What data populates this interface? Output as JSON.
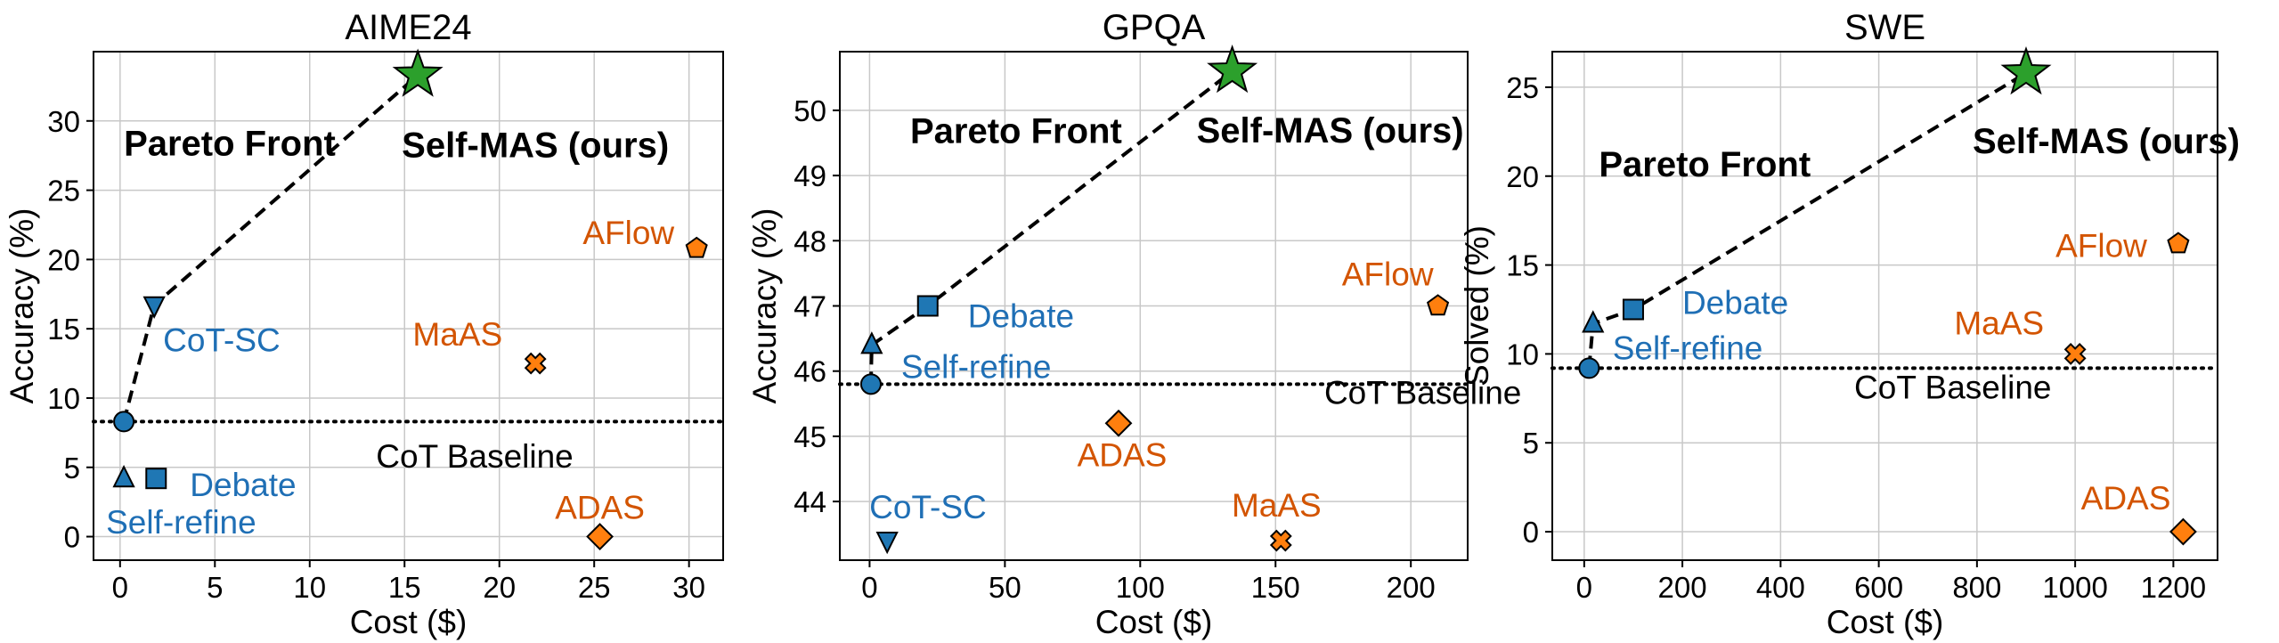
{
  "chart_data": [
    {
      "type": "scatter",
      "title": "AIME24",
      "xlabel": "Cost ($)",
      "ylabel": "Accuracy (%)",
      "xlim": [
        -1.4,
        31.8
      ],
      "ylim": [
        -1.7,
        35.0
      ],
      "xticks": [
        0,
        5,
        10,
        15,
        20,
        25,
        30
      ],
      "yticks": [
        0,
        5,
        10,
        15,
        20,
        25,
        30
      ],
      "grid": true,
      "baseline": {
        "label": "CoT Baseline",
        "y": 8.3
      },
      "pareto_front": {
        "label": "Pareto Front",
        "points": [
          [
            0.2,
            8.3
          ],
          [
            1.8,
            16.7
          ],
          [
            15.7,
            33.3
          ]
        ]
      },
      "points": [
        {
          "label": "Self-MAS (ours)",
          "x": 15.7,
          "y": 33.3,
          "marker": "star",
          "color": "#2ca02c",
          "label_color": "#000000"
        },
        {
          "label": "AFlow",
          "x": 30.4,
          "y": 20.8,
          "marker": "pentagon",
          "color": "#ff7f0e",
          "label_color": "#d35400"
        },
        {
          "label": "MaAS",
          "x": 21.9,
          "y": 12.5,
          "marker": "x",
          "color": "#ff7f0e",
          "label_color": "#d35400"
        },
        {
          "label": "ADAS",
          "x": 25.3,
          "y": 0.0,
          "marker": "diamond",
          "color": "#ff7f0e",
          "label_color": "#d35400"
        },
        {
          "label": "CoT-SC",
          "x": 1.8,
          "y": 16.7,
          "marker": "triangle-down",
          "color": "#1f77b4",
          "label_color": "#1f6fb5"
        },
        {
          "label": "CoT",
          "x": 0.2,
          "y": 8.3,
          "marker": "circle",
          "color": "#1f77b4",
          "label_color": ""
        },
        {
          "label": "Self-refine",
          "x": 0.2,
          "y": 4.2,
          "marker": "triangle-up",
          "color": "#1f77b4",
          "label_color": "#1f6fb5"
        },
        {
          "label": "Debate",
          "x": 1.9,
          "y": 4.2,
          "marker": "square",
          "color": "#1f77b4",
          "label_color": "#1f6fb5"
        }
      ]
    },
    {
      "type": "scatter",
      "title": "GPQA",
      "xlabel": "Cost ($)",
      "ylabel": "Accuracy (%)",
      "xlim": [
        -11,
        221
      ],
      "ylim": [
        43.1,
        50.9
      ],
      "xticks": [
        0,
        50,
        100,
        150,
        200
      ],
      "yticks": [
        44,
        45,
        46,
        47,
        48,
        49,
        50
      ],
      "grid": true,
      "baseline": {
        "label": "CoT Baseline",
        "y": 45.8
      },
      "pareto_front": {
        "label": "Pareto Front",
        "points": [
          [
            0.5,
            45.8
          ],
          [
            0.8,
            46.4
          ],
          [
            21.5,
            47.0
          ],
          [
            134,
            50.6
          ]
        ]
      },
      "points": [
        {
          "label": "Self-MAS (ours)",
          "x": 134,
          "y": 50.6,
          "marker": "star",
          "color": "#2ca02c",
          "label_color": "#000000"
        },
        {
          "label": "AFlow",
          "x": 210,
          "y": 47.0,
          "marker": "pentagon",
          "color": "#ff7f0e",
          "label_color": "#d35400"
        },
        {
          "label": "ADAS",
          "x": 92,
          "y": 45.2,
          "marker": "diamond",
          "color": "#ff7f0e",
          "label_color": "#d35400"
        },
        {
          "label": "MaAS",
          "x": 152,
          "y": 43.4,
          "marker": "x",
          "color": "#ff7f0e",
          "label_color": "#d35400"
        },
        {
          "label": "Debate",
          "x": 21.5,
          "y": 47.0,
          "marker": "square",
          "color": "#1f77b4",
          "label_color": "#1f6fb5"
        },
        {
          "label": "Self-refine",
          "x": 0.8,
          "y": 46.4,
          "marker": "triangle-up",
          "color": "#1f77b4",
          "label_color": "#1f6fb5"
        },
        {
          "label": "CoT",
          "x": 0.5,
          "y": 45.8,
          "marker": "circle",
          "color": "#1f77b4",
          "label_color": ""
        },
        {
          "label": "CoT-SC",
          "x": 6.5,
          "y": 43.4,
          "marker": "triangle-down",
          "color": "#1f77b4",
          "label_color": "#1f6fb5"
        }
      ]
    },
    {
      "type": "scatter",
      "title": "SWE",
      "xlabel": "Cost ($)",
      "ylabel": "Solved (%)",
      "xlim": [
        -65,
        1290
      ],
      "ylim": [
        -1.6,
        27.0
      ],
      "xticks": [
        0,
        200,
        400,
        600,
        800,
        1000,
        1200
      ],
      "yticks": [
        0,
        5,
        10,
        15,
        20,
        25
      ],
      "grid": true,
      "baseline": {
        "label": "CoT Baseline",
        "y": 9.2
      },
      "pareto_front": {
        "label": "Pareto Front",
        "points": [
          [
            10,
            9.2
          ],
          [
            18,
            11.7
          ],
          [
            100,
            12.5
          ],
          [
            900,
            25.8
          ]
        ]
      },
      "points": [
        {
          "label": "Self-MAS (ours)",
          "x": 900,
          "y": 25.8,
          "marker": "star",
          "color": "#2ca02c",
          "label_color": "#000000"
        },
        {
          "label": "AFlow",
          "x": 1210,
          "y": 16.2,
          "marker": "pentagon",
          "color": "#ff7f0e",
          "label_color": "#d35400"
        },
        {
          "label": "MaAS",
          "x": 1000,
          "y": 10.0,
          "marker": "x",
          "color": "#ff7f0e",
          "label_color": "#d35400"
        },
        {
          "label": "ADAS",
          "x": 1220,
          "y": 0.0,
          "marker": "diamond",
          "color": "#ff7f0e",
          "label_color": "#d35400"
        },
        {
          "label": "Debate",
          "x": 100,
          "y": 12.5,
          "marker": "square",
          "color": "#1f77b4",
          "label_color": "#1f6fb5"
        },
        {
          "label": "Self-refine",
          "x": 18,
          "y": 11.7,
          "marker": "triangle-up",
          "color": "#1f77b4",
          "label_color": "#1f6fb5"
        },
        {
          "label": "CoT",
          "x": 10,
          "y": 9.2,
          "marker": "circle",
          "color": "#1f77b4",
          "label_color": ""
        }
      ]
    }
  ]
}
